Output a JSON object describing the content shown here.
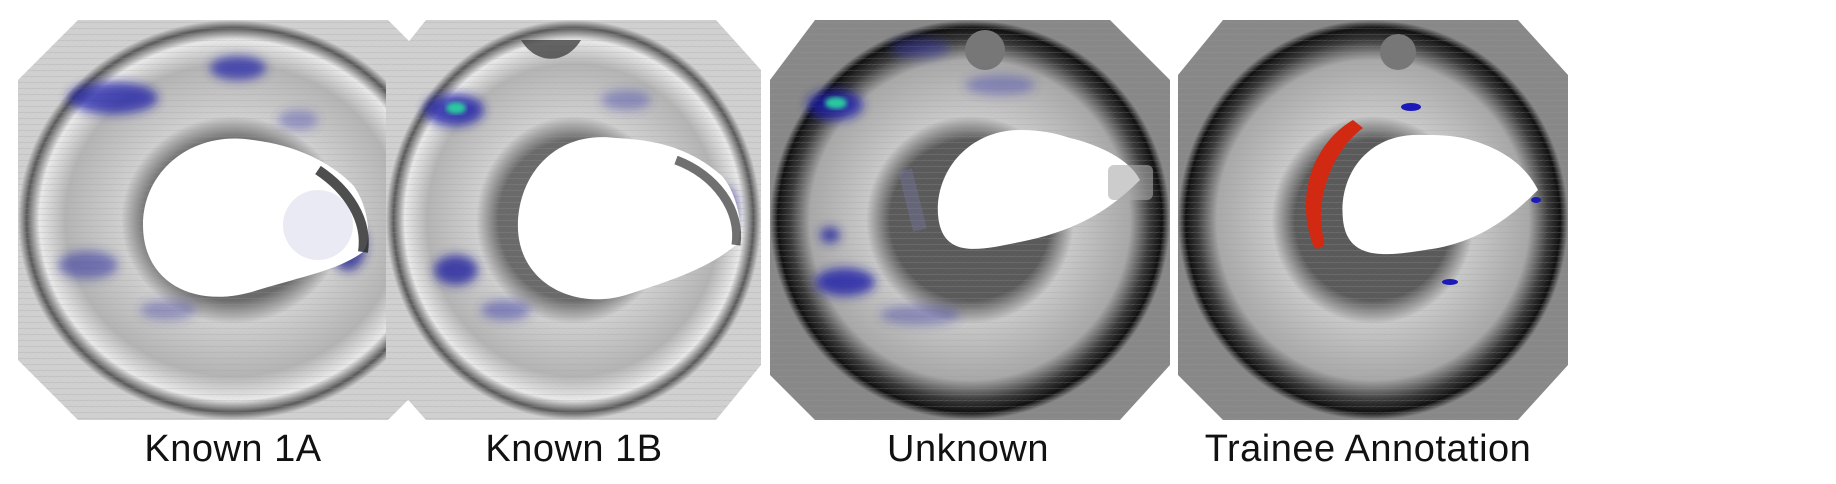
{
  "panels": [
    {
      "caption": "Known 1A",
      "overlay": "blue-heatmap"
    },
    {
      "caption": "Known 1B",
      "overlay": "blue-heatmap"
    },
    {
      "caption": "Unknown",
      "overlay": "blue-heatmap"
    },
    {
      "caption": "Trainee Annotation",
      "overlay": "red-annotation"
    }
  ],
  "colors": {
    "background": "#ffffff",
    "surface": "#b9b9b9",
    "heatmap_blue": "#1a1aa8",
    "heatmap_hot": "#29c9a0",
    "annotation_red": "#d22a12"
  }
}
